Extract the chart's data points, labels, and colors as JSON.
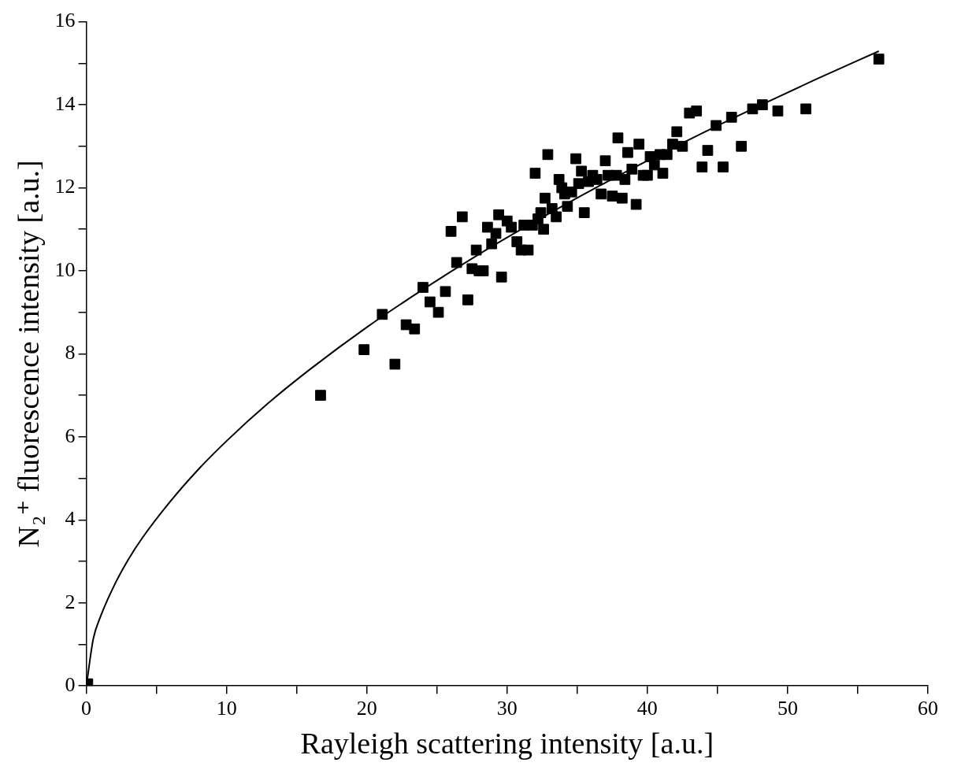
{
  "chart_data": {
    "type": "scatter",
    "xlabel": "Rayleigh scattering intensity [a.u.]",
    "ylabel": "N₂⁺ fluorescence intensity [a.u.]",
    "xlim": [
      0,
      60
    ],
    "ylim": [
      0,
      16
    ],
    "xticks": [
      0,
      {
        "value": 5,
        "label": null
      },
      10,
      {
        "value": 15,
        "label": null
      },
      20,
      {
        "value": 25,
        "label": null
      },
      30,
      {
        "value": 35,
        "label": null
      },
      40,
      {
        "value": 45,
        "label": null
      },
      50,
      {
        "value": 55,
        "label": null
      },
      60
    ],
    "yticks": [
      0,
      {
        "value": 1,
        "label": null
      },
      2,
      {
        "value": 3,
        "label": null
      },
      4,
      {
        "value": 5,
        "label": null
      },
      6,
      {
        "value": 7,
        "label": null
      },
      8,
      {
        "value": 9,
        "label": null
      },
      10,
      {
        "value": 11,
        "label": null
      },
      12,
      {
        "value": 13,
        "label": null
      },
      14,
      {
        "value": 15,
        "label": null
      },
      16
    ],
    "grid": false,
    "legend": false,
    "marker": "square",
    "series": [
      {
        "color": "#000000",
        "x": [
          0.1,
          16.7,
          19.8,
          21.1,
          22.0,
          22.8,
          23.4,
          24.0,
          24.5,
          25.1,
          25.6,
          26.0,
          26.4,
          26.8,
          27.2,
          27.5,
          27.8,
          28.0,
          28.3,
          28.6,
          28.9,
          29.2,
          29.4,
          29.6,
          30.0,
          30.3,
          30.7,
          31.0,
          31.2,
          31.5,
          31.8,
          32.0,
          32.2,
          32.4,
          32.6,
          32.7,
          32.9,
          33.2,
          33.5,
          33.7,
          33.9,
          34.1,
          34.3,
          34.6,
          34.9,
          35.1,
          35.3,
          35.5,
          35.8,
          36.1,
          36.4,
          36.7,
          37.0,
          37.2,
          37.5,
          37.8,
          37.9,
          38.2,
          38.4,
          38.6,
          38.9,
          39.2,
          39.4,
          39.7,
          40.0,
          40.2,
          40.5,
          40.9,
          41.1,
          41.4,
          41.8,
          42.1,
          42.5,
          43.0,
          43.5,
          43.9,
          44.3,
          44.9,
          45.4,
          46.0,
          46.7,
          47.5,
          48.2,
          49.3,
          51.3,
          56.5
        ],
        "values": [
          0.05,
          7.0,
          8.1,
          8.95,
          7.75,
          8.7,
          8.6,
          9.6,
          9.25,
          9.0,
          9.5,
          10.95,
          10.2,
          11.3,
          9.3,
          10.05,
          10.5,
          10.0,
          10.0,
          11.05,
          10.65,
          10.9,
          11.35,
          9.85,
          11.2,
          11.05,
          10.7,
          10.5,
          11.1,
          10.5,
          11.1,
          12.35,
          11.25,
          11.4,
          11.0,
          11.75,
          12.8,
          11.5,
          11.3,
          12.2,
          12.0,
          11.85,
          11.55,
          11.9,
          12.7,
          12.1,
          12.4,
          11.4,
          12.15,
          12.3,
          12.2,
          11.85,
          12.65,
          12.3,
          11.8,
          12.3,
          13.2,
          11.75,
          12.2,
          12.85,
          12.45,
          11.6,
          13.05,
          12.3,
          12.3,
          12.75,
          12.55,
          12.8,
          12.35,
          12.8,
          13.05,
          13.35,
          13.0,
          13.8,
          13.85,
          12.5,
          12.9,
          13.5,
          12.5,
          13.7,
          13.0,
          13.9,
          14.0,
          13.85,
          13.9,
          15.1
        ]
      },
      {
        "type": "line",
        "color": "#000000",
        "marker": "none",
        "line_style": "solid",
        "x": [
          0,
          0.5,
          1,
          2,
          3,
          4,
          6,
          8,
          10,
          13,
          16,
          20,
          24,
          28,
          32,
          36,
          40,
          44,
          48,
          52,
          56.5
        ],
        "values": [
          0,
          1.14,
          1.66,
          2.43,
          3.05,
          3.57,
          4.45,
          5.22,
          5.9,
          6.82,
          7.64,
          8.64,
          9.55,
          10.4,
          11.19,
          11.94,
          12.65,
          13.33,
          13.98,
          14.61,
          15.29
        ]
      }
    ]
  }
}
